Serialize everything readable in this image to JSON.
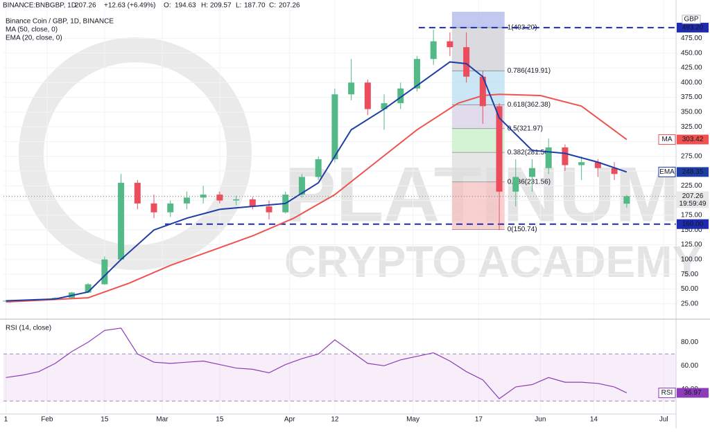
{
  "chart_data": {
    "type": "candlestick",
    "header": [
      "BINANCE:BNBGBP, 1D",
      "207.26",
      "+12.63 (+6.49%)",
      "O:",
      "194.63",
      "H:",
      "209.57",
      "L:",
      "187.70",
      "C:",
      "207.26"
    ],
    "currency": "GBP",
    "watermark": [
      "PLATINUM",
      "CRYPTO ACADEMY"
    ],
    "countdown": "19:59:49",
    "xlim": [
      -10.6,
      153
    ],
    "xticks": [
      {
        "value": -10,
        "label": "1"
      },
      {
        "value": 0,
        "label": "Feb"
      },
      {
        "value": 14,
        "label": "15"
      },
      {
        "value": 28,
        "label": "Mar"
      },
      {
        "value": 42,
        "label": "15"
      },
      {
        "value": 59,
        "label": "Apr"
      },
      {
        "value": 70,
        "label": "12"
      },
      {
        "value": 89,
        "label": "May"
      },
      {
        "value": 105,
        "label": "17"
      },
      {
        "value": 120,
        "label": "Jun"
      },
      {
        "value": 133,
        "label": "14"
      },
      {
        "value": 150,
        "label": "Jul"
      }
    ],
    "ylim": [
      0,
      540
    ],
    "yticks": [
      {
        "value": 25,
        "label": "25.00"
      },
      {
        "value": 50,
        "label": "50.00"
      },
      {
        "value": 75,
        "label": "75.00"
      },
      {
        "value": 100,
        "label": "100.00"
      },
      {
        "value": 125,
        "label": "125.00"
      },
      {
        "value": 150,
        "label": "150.00"
      },
      {
        "value": 175,
        "label": "175.00"
      },
      {
        "value": 200,
        "label": "200.00"
      },
      {
        "value": 225,
        "label": "225.00"
      },
      {
        "value": 250,
        "label": "250.00"
      },
      {
        "value": 275,
        "label": "275.00"
      },
      {
        "value": 300,
        "label": "300.00"
      },
      {
        "value": 325,
        "label": "325.00"
      },
      {
        "value": 350,
        "label": "350.00"
      },
      {
        "value": 375,
        "label": "375.00"
      },
      {
        "value": 400,
        "label": "400.00"
      },
      {
        "value": 425,
        "label": "425.00"
      },
      {
        "value": 450,
        "label": "450.00"
      },
      {
        "value": 475,
        "label": "475.00"
      }
    ],
    "grid": true,
    "up_color": "#53b987",
    "down_color": "#eb4d5c",
    "candles": {
      "name": "Binance Coin / GBP, 1D, BINANCE",
      "x": [
        -10,
        -6,
        -2,
        2,
        6,
        10,
        14,
        18,
        22,
        26,
        30,
        34,
        38,
        42,
        46,
        50,
        54,
        58,
        62,
        66,
        70,
        74,
        78,
        82,
        86,
        90,
        94,
        98,
        102,
        106,
        110,
        114,
        118,
        122,
        126,
        130,
        134,
        138,
        141
      ],
      "open": [
        30,
        30,
        31,
        32,
        35,
        44,
        58,
        100,
        230,
        195,
        180,
        195,
        205,
        210,
        200,
        202,
        190,
        180,
        210,
        240,
        270,
        380,
        400,
        355,
        365,
        390,
        440,
        470,
        460,
        410,
        360,
        215,
        240,
        255,
        290,
        260,
        265,
        255,
        194.63
      ],
      "high": [
        31,
        32,
        33,
        36,
        45,
        60,
        105,
        245,
        235,
        210,
        200,
        215,
        225,
        215,
        208,
        206,
        200,
        215,
        245,
        275,
        390,
        440,
        405,
        380,
        400,
        445,
        490,
        485,
        485,
        420,
        365,
        270,
        270,
        305,
        295,
        275,
        270,
        265,
        209.57
      ],
      "low": [
        29,
        29,
        30,
        31,
        34,
        43,
        57,
        98,
        185,
        170,
        172,
        185,
        195,
        195,
        192,
        185,
        168,
        178,
        205,
        235,
        265,
        370,
        345,
        320,
        355,
        385,
        430,
        445,
        400,
        330,
        150,
        190,
        215,
        245,
        250,
        235,
        240,
        235,
        187.7
      ],
      "close": [
        30,
        31,
        32,
        35,
        44,
        58,
        100,
        230,
        195,
        180,
        195,
        205,
        210,
        200,
        202,
        190,
        180,
        210,
        240,
        270,
        380,
        400,
        355,
        365,
        390,
        440,
        470,
        460,
        410,
        360,
        215,
        240,
        255,
        290,
        260,
        265,
        255,
        245,
        207.26
      ]
    },
    "series": [
      {
        "name": "MA (50, close, 0)",
        "label": "MA",
        "color": "#f0524f",
        "x": [
          -10,
          10,
          20,
          30,
          40,
          50,
          60,
          70,
          80,
          90,
          100,
          106,
          110,
          120,
          130,
          141
        ],
        "values": [
          28,
          35,
          60,
          90,
          115,
          140,
          170,
          210,
          265,
          320,
          365,
          378,
          380,
          378,
          360,
          303.42
        ]
      },
      {
        "name": "EMA (20, close, 0)",
        "label": "EMA",
        "color": "#1e3ea6",
        "x": [
          -10,
          2,
          10,
          18,
          26,
          34,
          42,
          50,
          58,
          66,
          74,
          82,
          90,
          98,
          102,
          106,
          110,
          118,
          126,
          134,
          141
        ],
        "values": [
          30,
          33,
          45,
          100,
          150,
          170,
          185,
          190,
          195,
          230,
          320,
          355,
          395,
          435,
          432,
          410,
          340,
          285,
          280,
          265,
          248.35
        ]
      }
    ],
    "levels": [
      {
        "value": 493.2,
        "label": "493.20",
        "x0": 90.4
      },
      {
        "value": 160,
        "label": "160.00",
        "x0": 28.7
      }
    ],
    "level_color": "#1e2ab0",
    "fib": {
      "x0": 98.5,
      "x1": 111.3,
      "levels": [
        {
          "value": 493.2,
          "label": "1(493.20)",
          "color": "#cfcfd4"
        },
        {
          "value": 419.91,
          "label": "0.786(419.91)",
          "color": "#b9def2"
        },
        {
          "value": 362.38,
          "label": "0.618(362.38)",
          "color": "#d6d0e4"
        },
        {
          "value": 321.97,
          "label": "0.5(321.97)",
          "color": "#c6efc6"
        },
        {
          "value": 281.56,
          "label": "0.382(281.56)",
          "color": "#dddddd"
        },
        {
          "value": 231.56,
          "label": "0.236(231.56)",
          "color": "#f5c0c0"
        },
        {
          "value": 150.74,
          "label": "0(150.74)"
        }
      ]
    },
    "rsi": {
      "name": "RSI (14, close)",
      "label": "RSI",
      "color": "#8e3bb8",
      "ylim": [
        19,
        99
      ],
      "yticks": [
        {
          "value": 40,
          "label": "40.00"
        },
        {
          "value": 60,
          "label": "60.00"
        },
        {
          "value": 80,
          "label": "80.00"
        }
      ],
      "bands": [
        30,
        70
      ],
      "x": [
        -10,
        -6,
        -2,
        2,
        6,
        10,
        14,
        18,
        22,
        26,
        30,
        34,
        38,
        42,
        46,
        50,
        54,
        58,
        62,
        66,
        70,
        74,
        78,
        82,
        86,
        90,
        94,
        98,
        102,
        106,
        110,
        114,
        118,
        122,
        126,
        130,
        134,
        138,
        141
      ],
      "values": [
        50,
        52,
        55,
        62,
        72,
        80,
        90,
        92,
        70,
        63,
        62,
        63,
        64,
        61,
        58,
        57,
        54,
        61,
        66,
        70,
        82,
        72,
        62,
        60,
        65,
        68,
        71,
        64,
        55,
        48,
        32,
        42,
        44,
        50,
        46,
        46,
        45,
        42,
        36.97
      ]
    }
  }
}
